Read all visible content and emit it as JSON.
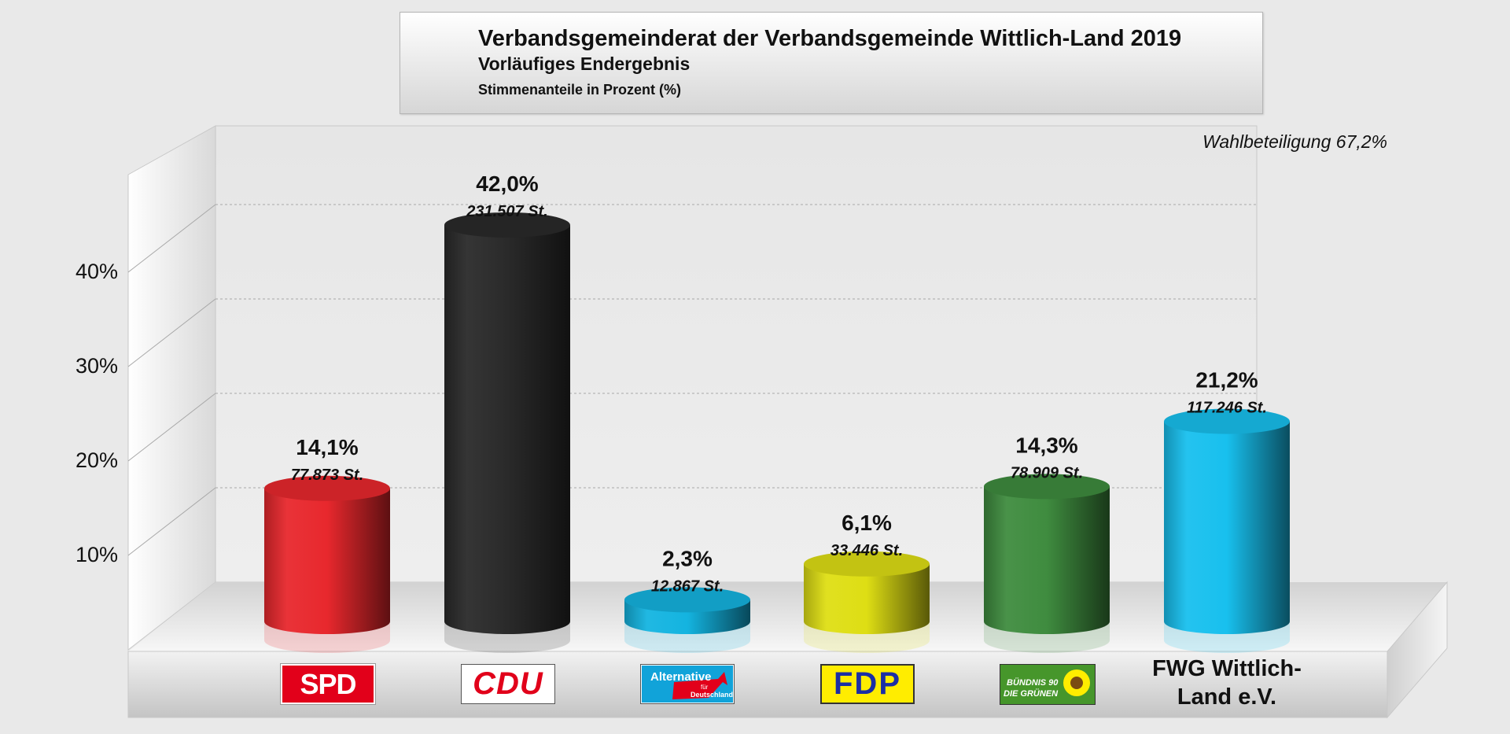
{
  "title": {
    "line1": "Verbandsgemeinderat der Verbandsgemeinde Wittlich-Land 2019",
    "line2": "Vorläufiges Endergebnis",
    "line3": "Stimmenanteile in Prozent (%)"
  },
  "turnout": "Wahlbeteiligung 67,2%",
  "chart_data": {
    "type": "bar",
    "style": "3d-cylinder",
    "title": "Verbandsgemeinderat der Verbandsgemeinde Wittlich-Land 2019",
    "ylabel": "",
    "ylim": [
      0,
      50
    ],
    "grid": true,
    "yticks": [
      {
        "value": 10,
        "label": "10%"
      },
      {
        "value": 20,
        "label": "20%"
      },
      {
        "value": 30,
        "label": "30%"
      },
      {
        "value": 40,
        "label": "40%"
      }
    ],
    "categories": [
      "SPD",
      "CDU",
      "AfD",
      "FDP",
      "GRÜNE",
      "FWG Wittlich-Land e.V."
    ],
    "values": [
      14.1,
      42.0,
      2.3,
      6.1,
      14.3,
      21.2
    ],
    "value_labels": [
      "14,1%",
      "42,0%",
      "2,3%",
      "6,1%",
      "14,3%",
      "21,2%"
    ],
    "vote_labels": [
      "77.873 St.",
      "231.507 St.",
      "12.867 St.",
      "33.446 St.",
      "78.909 St.",
      "117.246 St."
    ],
    "colors": [
      "#e8282d",
      "#2a2a2a",
      "#14b4e0",
      "#dede14",
      "#3f8c3f",
      "#18c0ee"
    ]
  },
  "logos": {
    "spd": "SPD",
    "cdu": "CDU",
    "afd_line1": "Alternative",
    "afd_line2": "für",
    "afd_line3": "Deutschland",
    "fdp": "FDP",
    "gruene_line1": "BÜNDNIS 90",
    "gruene_line2": "DIE GRÜNEN",
    "fwg_line1": "FWG Wittlich-",
    "fwg_line2": "Land e.V."
  }
}
